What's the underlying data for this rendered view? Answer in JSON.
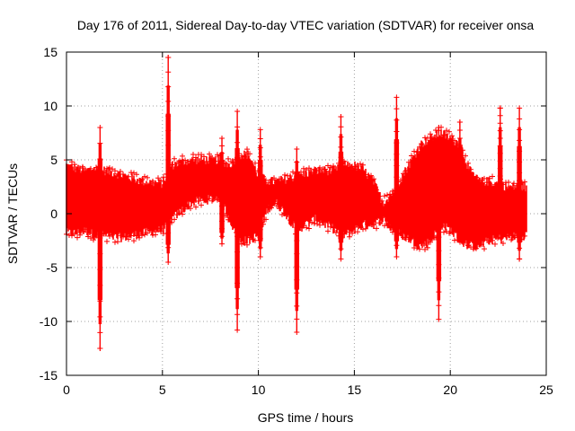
{
  "chart_data": {
    "type": "scatter",
    "title": "Day 176 of 2011, Sidereal Day-to-day VTEC variation (SDTVAR) for receiver onsa",
    "xlabel": "GPS time / hours",
    "ylabel": "SDTVAR / TECUs",
    "xlim": [
      0,
      25
    ],
    "ylim": [
      -15,
      15
    ],
    "xticks": [
      "0",
      "5",
      "10",
      "15",
      "20",
      "25"
    ],
    "yticks": [
      "-15",
      "-10",
      "-5",
      "0",
      "5",
      "10",
      "15"
    ],
    "grid": true,
    "marker": "+",
    "series_color": "#ff0000",
    "series": [
      {
        "name": "SDTVAR",
        "description": "dense band of '+' markers between 0 and 24 h",
        "band": {
          "x": [
            0,
            0.5,
            1,
            1.5,
            2,
            2.5,
            3,
            4,
            5,
            5.5,
            6,
            6.5,
            7,
            8,
            8.5,
            9,
            9.5,
            10,
            10.5,
            11,
            12,
            13,
            14,
            14.5,
            15,
            15.5,
            16,
            16.5,
            17,
            17.5,
            18,
            18.5,
            19,
            19.5,
            20,
            20.5,
            21,
            21.5,
            22,
            23,
            24
          ],
          "upper": [
            4.5,
            4.2,
            4.0,
            4.2,
            4.0,
            3.8,
            3.5,
            3.0,
            2.8,
            4.5,
            4.8,
            5.0,
            5.0,
            5.0,
            4.5,
            5.5,
            5.5,
            3.5,
            3.0,
            3.0,
            3.5,
            4.0,
            4.0,
            4.5,
            4.5,
            4.0,
            3.0,
            1.0,
            2.0,
            3.5,
            5.0,
            6.5,
            7.0,
            7.5,
            7.0,
            6.5,
            4.0,
            3.0,
            3.0,
            2.5,
            2.5
          ],
          "lower": [
            -1.8,
            -1.8,
            -1.6,
            -2.0,
            -2.0,
            -2.2,
            -2.2,
            -1.8,
            -1.5,
            -0.5,
            0.3,
            1.0,
            1.2,
            1.5,
            -0.5,
            -2.5,
            -2.5,
            -2.0,
            0.5,
            1.0,
            -1.5,
            -0.5,
            -1.5,
            -2.0,
            -1.5,
            -1.0,
            -1.0,
            -0.5,
            -1.5,
            -2.0,
            -2.5,
            -3.0,
            -2.5,
            -1.0,
            -1.5,
            -2.5,
            -3.0,
            -3.0,
            -2.5,
            -2.2,
            -2.0
          ]
        },
        "spikes": [
          {
            "x": 1.75,
            "ymin": -12.5,
            "ymax": 8.0
          },
          {
            "x": 5.3,
            "ymin": -4.5,
            "ymax": 14.5
          },
          {
            "x": 8.1,
            "ymin": -2.8,
            "ymax": 7.0
          },
          {
            "x": 8.9,
            "ymin": -10.8,
            "ymax": 9.5
          },
          {
            "x": 10.1,
            "ymin": -4.0,
            "ymax": 7.8
          },
          {
            "x": 12.0,
            "ymin": -11.0,
            "ymax": 6.0
          },
          {
            "x": 14.3,
            "ymin": -4.2,
            "ymax": 9.0
          },
          {
            "x": 17.2,
            "ymin": -4.0,
            "ymax": 10.8
          },
          {
            "x": 19.4,
            "ymin": -9.8,
            "ymax": 8.0
          },
          {
            "x": 20.5,
            "ymin": -2.0,
            "ymax": 8.5
          },
          {
            "x": 22.6,
            "ymin": 0.0,
            "ymax": 9.8
          },
          {
            "x": 23.6,
            "ymin": -4.2,
            "ymax": 9.8
          }
        ],
        "outliers": [
          {
            "x": 1.75,
            "y": -12.5
          },
          {
            "x": 5.3,
            "y": 14.5
          },
          {
            "x": 14.3,
            "y": 9.0
          },
          {
            "x": 18.5,
            "y": 6.5
          },
          {
            "x": 19.4,
            "y": 8.0
          },
          {
            "x": 20.5,
            "y": 8.5
          },
          {
            "x": 22.6,
            "y": 9.8
          },
          {
            "x": 23.6,
            "y": -4.2
          }
        ]
      }
    ]
  }
}
